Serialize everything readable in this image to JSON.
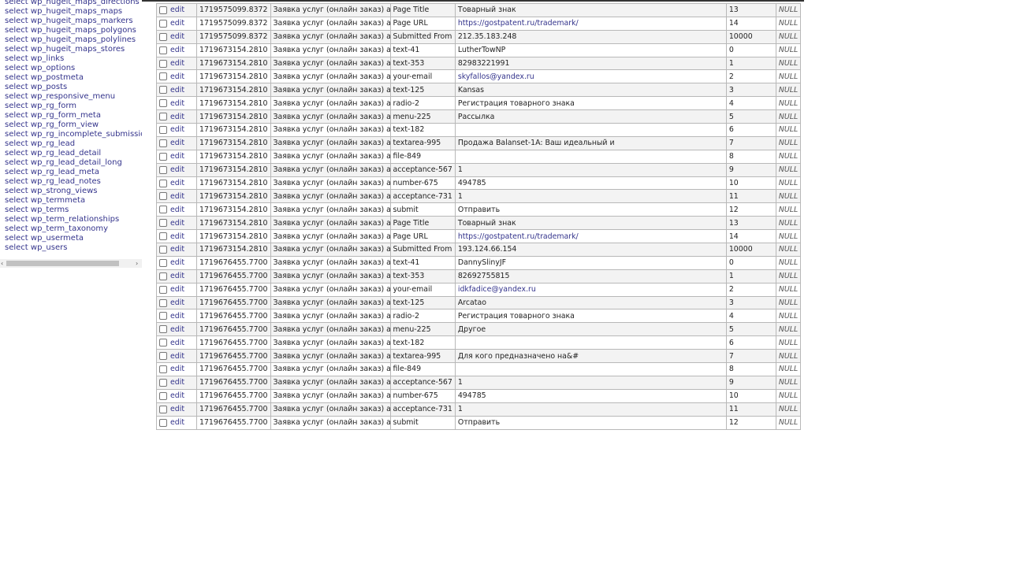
{
  "sidebar": {
    "items": [
      "select wp_hugeit_maps_directions",
      "select wp_hugeit_maps_maps",
      "select wp_hugeit_maps_markers",
      "select wp_hugeit_maps_polygons",
      "select wp_hugeit_maps_polylines",
      "select wp_hugeit_maps_stores",
      "select wp_links",
      "select wp_options",
      "select wp_postmeta",
      "select wp_posts",
      "select wp_responsive_menu",
      "select wp_rg_form",
      "select wp_rg_form_meta",
      "select wp_rg_form_view",
      "select wp_rg_incomplete_submissio",
      "select wp_rg_lead",
      "select wp_rg_lead_detail",
      "select wp_rg_lead_detail_long",
      "select wp_rg_lead_meta",
      "select wp_rg_lead_notes",
      "select wp_strong_views",
      "select wp_termmeta",
      "select wp_terms",
      "select wp_term_relationships",
      "select wp_term_taxonomy",
      "select wp_usermeta",
      "select wp_users"
    ],
    "scroll_left": "‹",
    "scroll_right": "›"
  },
  "table": {
    "edit_label": "edit",
    "null_label": "NULL",
    "link_color": "#34348c",
    "rows": [
      [
        "1719575099.8372",
        "Заявка услуг (онлайн заказ) акт",
        "Page Title",
        "Товарный знак",
        "13",
        false
      ],
      [
        "1719575099.8372",
        "Заявка услуг (онлайн заказ) акт",
        "Page URL",
        "https://gostpatent.ru/trademark/",
        "14",
        true
      ],
      [
        "1719575099.8372",
        "Заявка услуг (онлайн заказ) акт",
        "Submitted From",
        "212.35.183.248",
        "10000",
        false
      ],
      [
        "1719673154.2810",
        "Заявка услуг (онлайн заказ) акт",
        "text-41",
        "LutherTowNP",
        "0",
        false
      ],
      [
        "1719673154.2810",
        "Заявка услуг (онлайн заказ) акт",
        "text-353",
        "82983221991",
        "1",
        false
      ],
      [
        "1719673154.2810",
        "Заявка услуг (онлайн заказ) акт",
        "your-email",
        "skyfallos@yandex.ru",
        "2",
        true
      ],
      [
        "1719673154.2810",
        "Заявка услуг (онлайн заказ) акт",
        "text-125",
        "Kansas",
        "3",
        false
      ],
      [
        "1719673154.2810",
        "Заявка услуг (онлайн заказ) акт",
        "radio-2",
        "Регистрация товарного знака",
        "4",
        false
      ],
      [
        "1719673154.2810",
        "Заявка услуг (онлайн заказ) акт",
        "menu-225",
        "Рассылка",
        "5",
        false
      ],
      [
        "1719673154.2810",
        "Заявка услуг (онлайн заказ) акт",
        "text-182",
        "",
        "6",
        false
      ],
      [
        "1719673154.2810",
        "Заявка услуг (онлайн заказ) акт",
        "textarea-995",
        "Продажа Balanset-1A: Ваш идеальный и",
        "7",
        false
      ],
      [
        "1719673154.2810",
        "Заявка услуг (онлайн заказ) акт",
        "file-849",
        "",
        "8",
        false
      ],
      [
        "1719673154.2810",
        "Заявка услуг (онлайн заказ) акт",
        "acceptance-567",
        "1",
        "9",
        false
      ],
      [
        "1719673154.2810",
        "Заявка услуг (онлайн заказ) акт",
        "number-675",
        "494785",
        "10",
        false
      ],
      [
        "1719673154.2810",
        "Заявка услуг (онлайн заказ) акт",
        "acceptance-731",
        "1",
        "11",
        false
      ],
      [
        "1719673154.2810",
        "Заявка услуг (онлайн заказ) акт",
        "submit",
        "Отправить",
        "12",
        false
      ],
      [
        "1719673154.2810",
        "Заявка услуг (онлайн заказ) акт",
        "Page Title",
        "Товарный знак",
        "13",
        false
      ],
      [
        "1719673154.2810",
        "Заявка услуг (онлайн заказ) акт",
        "Page URL",
        "https://gostpatent.ru/trademark/",
        "14",
        true
      ],
      [
        "1719673154.2810",
        "Заявка услуг (онлайн заказ) акт",
        "Submitted From",
        "193.124.66.154",
        "10000",
        false
      ],
      [
        "1719676455.7700",
        "Заявка услуг (онлайн заказ) акт",
        "text-41",
        "DannySlinyJF",
        "0",
        false
      ],
      [
        "1719676455.7700",
        "Заявка услуг (онлайн заказ) акт",
        "text-353",
        "82692755815",
        "1",
        false
      ],
      [
        "1719676455.7700",
        "Заявка услуг (онлайн заказ) акт",
        "your-email",
        "idkfadice@yandex.ru",
        "2",
        true
      ],
      [
        "1719676455.7700",
        "Заявка услуг (онлайн заказ) акт",
        "text-125",
        "Arcatao",
        "3",
        false
      ],
      [
        "1719676455.7700",
        "Заявка услуг (онлайн заказ) акт",
        "radio-2",
        "Регистрация товарного знака",
        "4",
        false
      ],
      [
        "1719676455.7700",
        "Заявка услуг (онлайн заказ) акт",
        "menu-225",
        "Другое",
        "5",
        false
      ],
      [
        "1719676455.7700",
        "Заявка услуг (онлайн заказ) акт",
        "text-182",
        "",
        "6",
        false
      ],
      [
        "1719676455.7700",
        "Заявка услуг (онлайн заказ) акт",
        "textarea-995",
        " Для кого предназначено на&#",
        "7",
        false
      ],
      [
        "1719676455.7700",
        "Заявка услуг (онлайн заказ) акт",
        "file-849",
        "",
        "8",
        false
      ],
      [
        "1719676455.7700",
        "Заявка услуг (онлайн заказ) акт",
        "acceptance-567",
        "1",
        "9",
        false
      ],
      [
        "1719676455.7700",
        "Заявка услуг (онлайн заказ) акт",
        "number-675",
        "494785",
        "10",
        false
      ],
      [
        "1719676455.7700",
        "Заявка услуг (онлайн заказ) акт",
        "acceptance-731",
        "1",
        "11",
        false
      ],
      [
        "1719676455.7700",
        "Заявка услуг (онлайн заказ) акт",
        "submit",
        "Отправить",
        "12",
        false
      ]
    ]
  }
}
